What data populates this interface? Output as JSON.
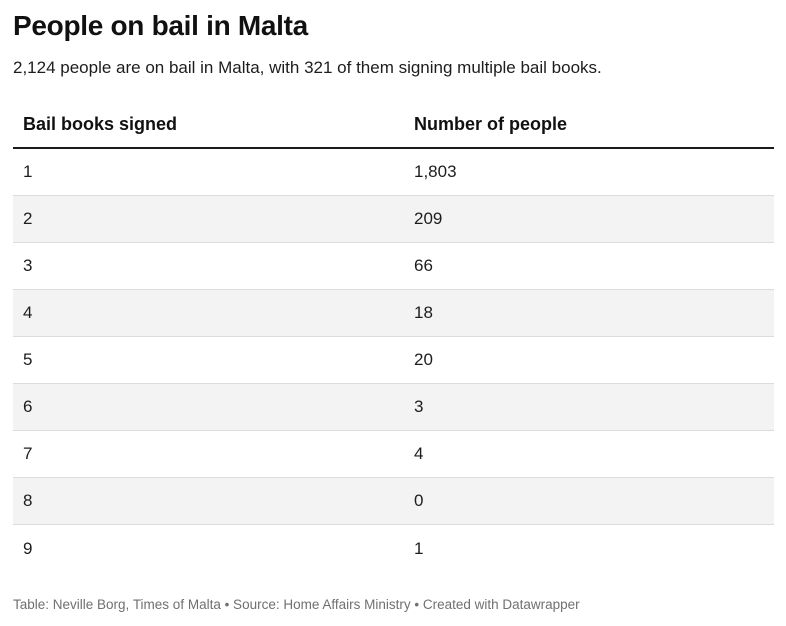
{
  "title": "People on bail in Malta",
  "subtitle": "2,124 people are on bail in Malta, with 321 of them signing multiple bail books.",
  "footer": "Table: Neville Borg, Times of Malta • Source: Home Affairs Ministry • Created with Datawrapper",
  "chart_data": {
    "type": "table",
    "title": "People on bail in Malta",
    "columns": [
      "Bail books signed",
      "Number of people"
    ],
    "rows": [
      [
        "1",
        "1,803"
      ],
      [
        "2",
        "209"
      ],
      [
        "3",
        "66"
      ],
      [
        "4",
        "18"
      ],
      [
        "5",
        "20"
      ],
      [
        "6",
        "3"
      ],
      [
        "7",
        "4"
      ],
      [
        "8",
        "0"
      ],
      [
        "9",
        "1"
      ]
    ]
  }
}
